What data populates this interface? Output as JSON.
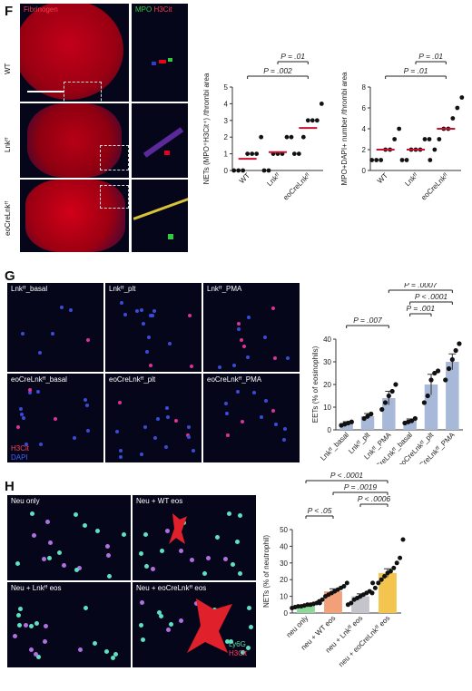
{
  "panels": {
    "F": {
      "letter": "F",
      "channel_labels": {
        "fibrinogen": "Fibrinogen",
        "mpo": "MPO",
        "h3cit": "H3Cit"
      },
      "row_labels": [
        "WT",
        "Lnkᶠᶠ",
        "eoCreLnkᶠᶠ"
      ],
      "colors": {
        "fibrinogen": "#e8001e",
        "mpo": "#2ecc40",
        "h3cit": "#e8001e",
        "median": "#c8102e"
      }
    },
    "G": {
      "letter": "G",
      "image_labels": [
        "Lnkᶠᶠ_basal",
        "Lnkᶠᶠ_plt",
        "Lnkᶠᶠ_PMA",
        "eoCreLnkᶠᶠ_basal",
        "eoCreLnkᶠᶠ_plt",
        "eoCreLnkᶠᶠ_PMA"
      ],
      "stain_labels": [
        "H3Cit",
        "DAPI"
      ],
      "colors": {
        "bar": "#a8b8d8"
      }
    },
    "H": {
      "letter": "H",
      "image_labels": [
        "Neu only",
        "Neu + WT eos",
        "Neu + Lnkᶠᶠ eos",
        "Neu + eoCreLnkᶠᶠ eos"
      ],
      "stain_labels": [
        "Ly6G",
        "H3Cit"
      ],
      "colors": {
        "neu_only": "#8ed89a",
        "wt_eos": "#f2a07a",
        "lnk_eos": "#c4c4cc",
        "eocre_eos": "#f3c54e"
      }
    }
  },
  "chart_data": [
    {
      "id": "F1",
      "type": "scatter",
      "ylabel": "NETs (MPO⁺H3Cit⁺) /thrombi area",
      "categories": [
        "WT",
        "Lnkᶠᶠ",
        "eoCreLnkᶠᶠ"
      ],
      "ylim": [
        0,
        5
      ],
      "yticks": [
        0,
        1,
        2,
        3,
        4,
        5
      ],
      "points": [
        [
          0,
          0,
          0,
          1,
          1,
          1,
          2
        ],
        [
          0,
          0,
          1,
          1,
          1,
          2,
          2
        ],
        [
          1,
          1,
          2,
          3,
          3,
          3,
          4
        ]
      ],
      "medians": [
        0.7,
        1.1,
        2.55
      ],
      "significance": [
        {
          "from": 0,
          "to": 2,
          "label": "P = .002"
        },
        {
          "from": 1,
          "to": 2,
          "label": "P = .01"
        }
      ]
    },
    {
      "id": "F2",
      "type": "scatter",
      "ylabel": "MPO+DAPI+ number /thrombi area",
      "categories": [
        "WT",
        "Lnkᶠᶠ",
        "eoCreLnkᶠᶠ"
      ],
      "ylim": [
        0,
        8
      ],
      "yticks": [
        0,
        2,
        4,
        6,
        8
      ],
      "points": [
        [
          1,
          1,
          1,
          2,
          2,
          3,
          4
        ],
        [
          1,
          1,
          2,
          2,
          2,
          3,
          3
        ],
        [
          1,
          2,
          3,
          4,
          4,
          5,
          6,
          7
        ]
      ],
      "medians": [
        2,
        2,
        4
      ],
      "significance": [
        {
          "from": 0,
          "to": 2,
          "label": "P = .01"
        },
        {
          "from": 1,
          "to": 2,
          "label": "P = .01"
        }
      ]
    },
    {
      "id": "G",
      "type": "bar",
      "ylabel": "EETs (% of eosinophils)",
      "categories": [
        "Lnkᶠᶠ_basal",
        "Lnkᶠᶠ_plt",
        "Lnkᶠᶠ_PMA",
        "eoCreLnkᶠᶠ_basal",
        "eoCreLnkᶠᶠ_plt",
        "eoCreLnkᶠᶠ_PMA"
      ],
      "values": [
        3,
        6,
        14,
        4,
        20,
        30
      ],
      "errors": [
        0.6,
        1.2,
        3,
        0.8,
        4.5,
        3.5
      ],
      "points": [
        [
          2,
          2.5,
          3,
          3.5
        ],
        [
          5,
          6,
          7
        ],
        [
          9,
          12,
          15,
          17,
          20
        ],
        [
          3,
          3.5,
          4,
          5
        ],
        [
          12,
          15,
          22,
          25,
          26
        ],
        [
          22,
          27,
          31,
          35,
          38
        ]
      ],
      "ylim": [
        0,
        40
      ],
      "yticks": [
        0,
        10,
        20,
        30,
        40
      ],
      "significance": [
        {
          "from": 0,
          "to": 2,
          "label": "P = .007"
        },
        {
          "from": 3,
          "to": 4,
          "label": "P = .001"
        },
        {
          "from": 3,
          "to": 5,
          "label": "P < .0001"
        },
        {
          "from": 2,
          "to": 5,
          "label": "P = .0007"
        }
      ]
    },
    {
      "id": "H",
      "type": "bar",
      "ylabel": "NETs (% of neutrophil)",
      "categories": [
        "neu only",
        "neu + WT eos",
        "neu + Lnkᶠᶠ eos",
        "neu + eoCreLnkᶠᶠ eos"
      ],
      "values": [
        4.5,
        13,
        10,
        24
      ],
      "errors": [
        0.5,
        1.5,
        1.5,
        2.5
      ],
      "points": [
        [
          3,
          3.5,
          4,
          4,
          4.5,
          5,
          5,
          5.5,
          6,
          6
        ],
        [
          7,
          8,
          10,
          11,
          12,
          13,
          14,
          15,
          16,
          18
        ],
        [
          5,
          6,
          8,
          9,
          10,
          11,
          12,
          13,
          18
        ],
        [
          12,
          15,
          18,
          20,
          22,
          24,
          25,
          27,
          30,
          33,
          44
        ]
      ],
      "ylim": [
        0,
        50
      ],
      "yticks": [
        0,
        10,
        20,
        30,
        40,
        50
      ],
      "significance": [
        {
          "from": 0,
          "to": 1,
          "label": "P < .05"
        },
        {
          "from": 2,
          "to": 3,
          "label": "P < .0006"
        },
        {
          "from": 1,
          "to": 3,
          "label": "P = .0019"
        },
        {
          "from": 0,
          "to": 3,
          "label": "P < .0001"
        }
      ]
    }
  ]
}
